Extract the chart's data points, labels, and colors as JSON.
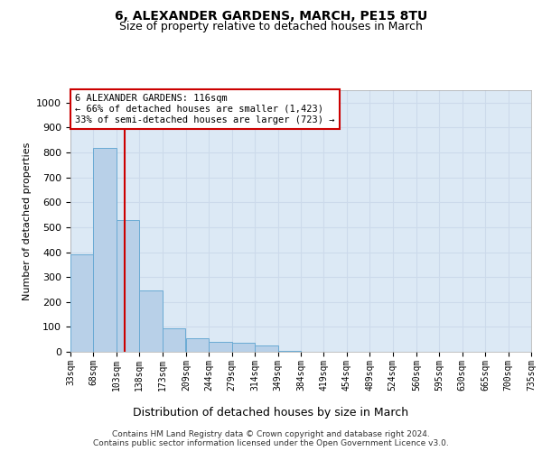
{
  "title1": "6, ALEXANDER GARDENS, MARCH, PE15 8TU",
  "title2": "Size of property relative to detached houses in March",
  "xlabel": "Distribution of detached houses by size in March",
  "ylabel": "Number of detached properties",
  "bar_lefts": [
    33,
    68,
    103,
    138,
    173,
    209,
    244,
    279,
    314,
    349,
    384,
    419,
    454,
    489,
    524,
    560,
    595,
    630,
    665,
    700
  ],
  "bar_widths": [
    35,
    35,
    35,
    35,
    35,
    35,
    35,
    35,
    35,
    35,
    35,
    35,
    35,
    35,
    35,
    35,
    35,
    35,
    35,
    35
  ],
  "bar_heights": [
    390,
    820,
    530,
    245,
    95,
    55,
    40,
    35,
    25,
    5,
    0,
    0,
    0,
    0,
    0,
    0,
    0,
    0,
    0,
    0
  ],
  "bar_color": "#b8d0e8",
  "bar_edge_color": "#6aaad4",
  "grid_color": "#ccdaeb",
  "background_color": "#dce9f5",
  "vline_x": 116,
  "vline_color": "#cc0000",
  "annotation_text": "6 ALEXANDER GARDENS: 116sqm\n← 66% of detached houses are smaller (1,423)\n33% of semi-detached houses are larger (723) →",
  "annotation_box_color": "#cc0000",
  "ylim": [
    0,
    1050
  ],
  "yticks": [
    0,
    100,
    200,
    300,
    400,
    500,
    600,
    700,
    800,
    900,
    1000
  ],
  "xlim_left": 33,
  "xlim_right": 735,
  "tick_positions": [
    33,
    68,
    103,
    138,
    173,
    209,
    244,
    279,
    314,
    349,
    384,
    419,
    454,
    489,
    524,
    560,
    595,
    630,
    665,
    700,
    735
  ],
  "tick_labels": [
    "33sqm",
    "68sqm",
    "103sqm",
    "138sqm",
    "173sqm",
    "209sqm",
    "244sqm",
    "279sqm",
    "314sqm",
    "349sqm",
    "384sqm",
    "419sqm",
    "454sqm",
    "489sqm",
    "524sqm",
    "560sqm",
    "595sqm",
    "630sqm",
    "665sqm",
    "700sqm",
    "735sqm"
  ],
  "footnote1": "Contains HM Land Registry data © Crown copyright and database right 2024.",
  "footnote2": "Contains public sector information licensed under the Open Government Licence v3.0."
}
